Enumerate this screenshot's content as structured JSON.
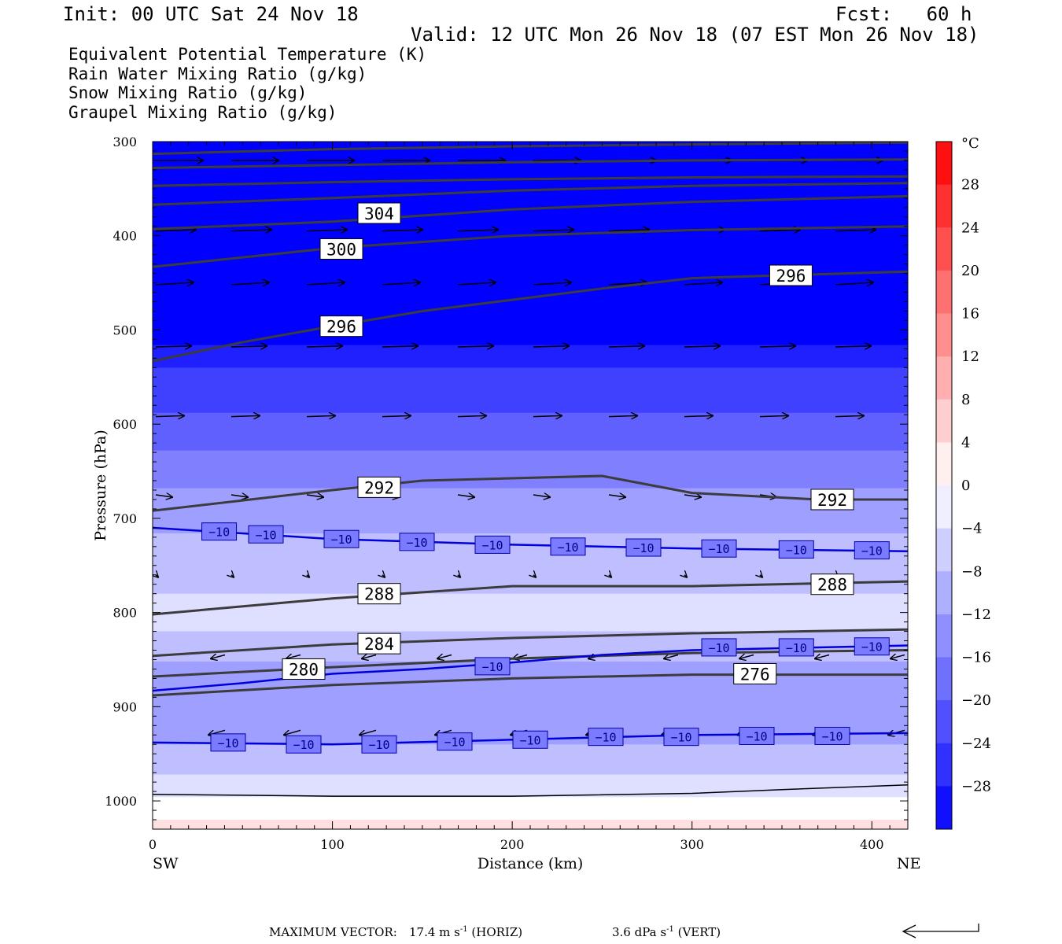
{
  "header": {
    "init": "Init: 00 UTC Sat 24 Nov 18",
    "fcst": "Fcst:   60 h",
    "valid": "Valid: 12 UTC Mon 26 Nov 18 (07 EST Mon 26 Nov 18)"
  },
  "legend": [
    {
      "text": "Equivalent Potential Temperature (K)",
      "color": "#555555"
    },
    {
      "text": "Rain Water Mixing Ratio (g/kg)",
      "color": "#1a7a1a"
    },
    {
      "text": "Snow Mixing Ratio (g/kg)",
      "color": "#f08a50"
    },
    {
      "text": "Graupel Mixing Ratio (g/kg)",
      "color": "#e878e8"
    }
  ],
  "footer": {
    "label": "MAXIMUM VECTOR:",
    "horiz_value": "17.4 m s",
    "horiz_unit": "(HORIZ)",
    "vert_value": "3.6 dPa s",
    "vert_unit": "(VERT)",
    "exponent": "-1"
  },
  "chart_data": {
    "type": "cross-section",
    "xlabel": "Distance (km)",
    "ylabel": "Pressure (hPa)",
    "xlim": [
      0,
      420
    ],
    "ylim": [
      1030,
      300
    ],
    "x_ticks": [
      0,
      100,
      200,
      300,
      400
    ],
    "y_ticks": [
      300,
      400,
      500,
      600,
      700,
      800,
      900,
      1000
    ],
    "x_end_labels": {
      "left": "SW",
      "right": "NE"
    },
    "colorbar": {
      "unit": "°C",
      "tick_labels": [
        "28",
        "24",
        "20",
        "16",
        "12",
        "8",
        "4",
        "0",
        "−4",
        "−8",
        "−12",
        "−16",
        "−20",
        "−24",
        "−28"
      ],
      "tick_values": [
        28,
        24,
        20,
        16,
        12,
        8,
        4,
        0,
        -4,
        -8,
        -12,
        -16,
        -20,
        -24,
        -28
      ],
      "range": [
        -32,
        32
      ],
      "color_cold": "#0000ff",
      "color_zero": "#ffffff",
      "color_warm": "#ff0000"
    },
    "temperature_bands_C": [
      {
        "p": 300,
        "t": -32
      },
      {
        "p": 500,
        "t": -32
      },
      {
        "p": 520,
        "t": -29
      },
      {
        "p": 560,
        "t": -24
      },
      {
        "p": 610,
        "t": -20
      },
      {
        "p": 660,
        "t": -15
      },
      {
        "p": 700,
        "t": -11
      },
      {
        "p": 760,
        "t": -7
      },
      {
        "p": 810,
        "t": -4
      },
      {
        "p": 850,
        "t": -10
      },
      {
        "p": 900,
        "t": -13
      },
      {
        "p": 940,
        "t": -10
      },
      {
        "p": 990,
        "t": -4
      },
      {
        "p": 1030,
        "t": 4
      }
    ],
    "theta_e_contours": [
      {
        "label": "304",
        "x": [
          0,
          100,
          200,
          300,
          420
        ],
        "p": [
          393,
          385,
          372,
          364,
          358
        ]
      },
      {
        "label": "300",
        "x": [
          0,
          100,
          200,
          300,
          420
        ],
        "p": [
          433,
          413,
          400,
          394,
          390
        ]
      },
      {
        "label": "296",
        "x": [
          0,
          50,
          100,
          150,
          200,
          250,
          300,
          350,
          420
        ],
        "p": [
          533,
          513,
          496,
          480,
          468,
          456,
          445,
          442,
          438
        ]
      },
      {
        "label": "292",
        "x": [
          0,
          100,
          150,
          250,
          300,
          370,
          420
        ],
        "p": [
          692,
          670,
          660,
          655,
          673,
          680,
          680
        ]
      },
      {
        "label": "288",
        "x": [
          0,
          100,
          200,
          300,
          420
        ],
        "p": [
          802,
          785,
          772,
          772,
          767
        ]
      },
      {
        "label": "284",
        "x": [
          0,
          100,
          200,
          300,
          420
        ],
        "p": [
          846,
          834,
          827,
          822,
          818
        ]
      },
      {
        "label": "280",
        "x": [
          0,
          100,
          200,
          300,
          420
        ],
        "p": [
          868,
          858,
          849,
          843,
          840
        ]
      },
      {
        "label": "276",
        "x": [
          0,
          100,
          200,
          300,
          420
        ],
        "p": [
          888,
          877,
          870,
          866,
          866
        ]
      },
      {
        "label": "",
        "x": [
          0,
          100,
          200,
          300,
          420
        ],
        "p": [
          313,
          308,
          305,
          303,
          301
        ]
      },
      {
        "label": "",
        "x": [
          0,
          100,
          200,
          300,
          420
        ],
        "p": [
          328,
          325,
          322,
          320,
          319
        ]
      },
      {
        "label": "",
        "x": [
          0,
          100,
          200,
          300,
          420
        ],
        "p": [
          347,
          343,
          340,
          338,
          337
        ]
      },
      {
        "label": "",
        "x": [
          0,
          100,
          200,
          300,
          420
        ],
        "p": [
          367,
          360,
          352,
          347,
          344
        ]
      }
    ],
    "temperature_contours_C": [
      {
        "label": "−10",
        "x": [
          0,
          100,
          200,
          300,
          420
        ],
        "p": [
          710,
          722,
          728,
          732,
          735
        ]
      },
      {
        "label": "−10",
        "x": [
          0,
          50,
          100,
          150,
          200,
          250,
          300,
          420
        ],
        "p": [
          883,
          875,
          865,
          860,
          853,
          845,
          840,
          835
        ]
      },
      {
        "label": "−10",
        "x": [
          0,
          100,
          200,
          300,
          420
        ],
        "p": [
          938,
          940,
          935,
          930,
          928
        ]
      }
    ],
    "temperature_contour_labels": [
      {
        "text": "−10",
        "x": 37,
        "p": 714
      },
      {
        "text": "−10",
        "x": 63,
        "p": 717
      },
      {
        "text": "−10",
        "x": 105,
        "p": 722
      },
      {
        "text": "−10",
        "x": 147,
        "p": 725
      },
      {
        "text": "−10",
        "x": 189,
        "p": 728
      },
      {
        "text": "−10",
        "x": 231,
        "p": 730
      },
      {
        "text": "−10",
        "x": 273,
        "p": 731
      },
      {
        "text": "−10",
        "x": 315,
        "p": 732
      },
      {
        "text": "−10",
        "x": 358,
        "p": 733
      },
      {
        "text": "−10",
        "x": 400,
        "p": 734
      },
      {
        "text": "−10",
        "x": 189,
        "p": 857
      },
      {
        "text": "−10",
        "x": 315,
        "p": 837
      },
      {
        "text": "−10",
        "x": 358,
        "p": 837
      },
      {
        "text": "−10",
        "x": 400,
        "p": 836
      },
      {
        "text": "−10",
        "x": 42,
        "p": 938
      },
      {
        "text": "−10",
        "x": 84,
        "p": 940
      },
      {
        "text": "−10",
        "x": 126,
        "p": 940
      },
      {
        "text": "−10",
        "x": 168,
        "p": 937
      },
      {
        "text": "−10",
        "x": 210,
        "p": 935
      },
      {
        "text": "−10",
        "x": 252,
        "p": 932
      },
      {
        "text": "−10",
        "x": 294,
        "p": 932
      },
      {
        "text": "−10",
        "x": 336,
        "p": 931
      },
      {
        "text": "−10",
        "x": 378,
        "p": 931
      }
    ],
    "theta_e_labels": [
      {
        "text": "304",
        "x": 126,
        "p": 376
      },
      {
        "text": "300",
        "x": 105,
        "p": 414
      },
      {
        "text": "296",
        "x": 105,
        "p": 496
      },
      {
        "text": "296",
        "x": 355,
        "p": 442
      },
      {
        "text": "292",
        "x": 126,
        "p": 667
      },
      {
        "text": "292",
        "x": 378,
        "p": 680
      },
      {
        "text": "288",
        "x": 126,
        "p": 780
      },
      {
        "text": "288",
        "x": 378,
        "p": 770
      },
      {
        "text": "284",
        "x": 126,
        "p": 833
      },
      {
        "text": "280",
        "x": 84,
        "p": 860
      },
      {
        "text": "276",
        "x": 335,
        "p": 865
      }
    ],
    "surface_line": {
      "x": [
        0,
        100,
        200,
        300,
        350,
        420
      ],
      "p": [
        993,
        995,
        995,
        992,
        988,
        983
      ]
    },
    "vector_levels": [
      {
        "p": 320,
        "u": 1.0,
        "w": 0.0,
        "x": [
          0,
          42,
          84,
          126,
          168,
          210,
          252,
          294,
          336,
          378
        ]
      },
      {
        "p": 395,
        "u": 0.85,
        "w": 0.03,
        "x": [
          0,
          42,
          84,
          126,
          168,
          210,
          252,
          294,
          336,
          378
        ]
      },
      {
        "p": 452,
        "u": 0.8,
        "w": 0.05,
        "x": [
          0,
          42,
          84,
          126,
          168,
          210,
          252,
          294,
          336,
          378
        ]
      },
      {
        "p": 518,
        "u": 0.75,
        "w": 0.02,
        "x": [
          0,
          42,
          84,
          126,
          168,
          210,
          252,
          294,
          336,
          378
        ]
      },
      {
        "p": 592,
        "u": 0.6,
        "w": 0.02,
        "x": [
          0,
          42,
          84,
          126,
          168,
          210,
          252,
          294,
          336,
          378
        ]
      },
      {
        "p": 675,
        "u": 0.35,
        "w": -0.05,
        "x": [
          0,
          42,
          84,
          126,
          168,
          210,
          252,
          294,
          336,
          378
        ]
      },
      {
        "p": 760,
        "u": 0.05,
        "w": -0.05,
        "x": [
          0,
          42,
          84,
          126,
          168,
          210,
          252,
          294,
          336,
          378
        ]
      },
      {
        "p": 845,
        "u": -0.3,
        "w": -0.08,
        "x": [
          42,
          84,
          126,
          168,
          210,
          252,
          294,
          336,
          378,
          420
        ]
      },
      {
        "p": 925,
        "u": -0.35,
        "w": -0.1,
        "x": [
          42,
          84,
          126,
          168,
          210,
          252,
          294,
          336,
          378,
          420
        ]
      }
    ]
  }
}
